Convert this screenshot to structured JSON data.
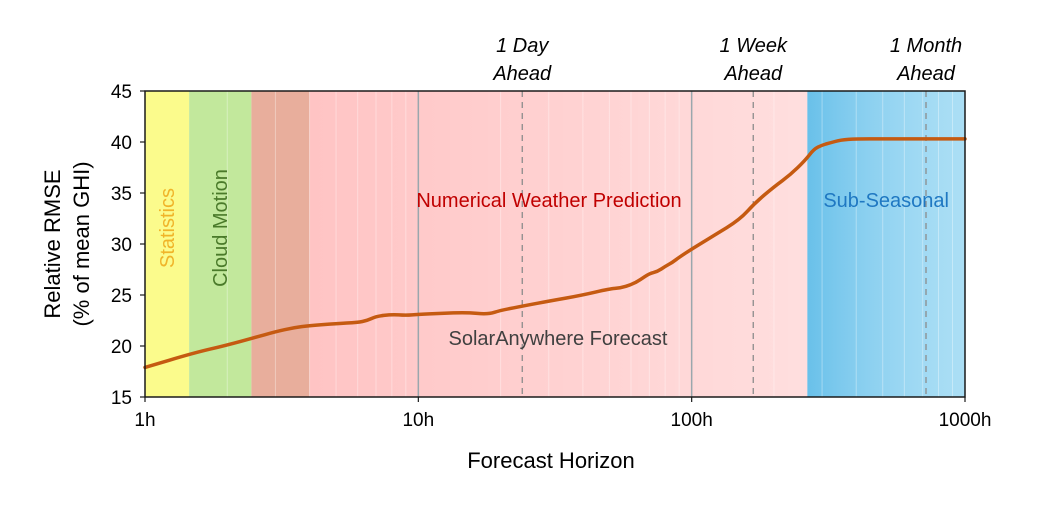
{
  "chart_data": {
    "type": "line",
    "x_scale": "log",
    "xlim": [
      1,
      1000
    ],
    "ylim": [
      15,
      45
    ],
    "xlabel": "Forecast Horizon",
    "ylabel_line1": "Relative RMSE",
    "ylabel_line2": "(% of mean GHI)",
    "x_ticks": [
      {
        "value": 1,
        "label": "1h"
      },
      {
        "value": 10,
        "label": "10h"
      },
      {
        "value": 100,
        "label": "100h"
      },
      {
        "value": 1000,
        "label": "1000h"
      }
    ],
    "y_ticks": [
      15,
      20,
      25,
      30,
      35,
      40,
      45
    ],
    "regions": [
      {
        "label": "Statistics",
        "from": 1,
        "to": 1.45,
        "color": "#fbfb8c",
        "label_color": "#f0b429",
        "orientation": "vertical"
      },
      {
        "label": "Cloud Motion",
        "from": 1.45,
        "to": 2.45,
        "color": "#c2e89c",
        "label_color": "#4a7a2a",
        "orientation": "vertical"
      },
      {
        "label": "",
        "from": 2.45,
        "to": 4,
        "color": "#e8ae9c",
        "label_color": "",
        "orientation": "none"
      },
      {
        "label": "Numerical Weather Prediction",
        "from": 4,
        "to": 265,
        "color": "#ffc4c4",
        "label_color": "#c00000",
        "orientation": "horizontal"
      },
      {
        "label": "Sub-Seasonal",
        "from": 265,
        "to": 1000,
        "color": "#8fd4f2",
        "label_color": "#1f78c2",
        "orientation": "horizontal"
      }
    ],
    "milestones": [
      {
        "value": 24,
        "line1": "1 Day",
        "line2": "Ahead"
      },
      {
        "value": 168,
        "line1": "1 Week",
        "line2": "Ahead"
      },
      {
        "value": 720,
        "line1": "1 Month",
        "line2": "Ahead"
      }
    ],
    "series": [
      {
        "name": "SolarAnywhere Forecast",
        "color": "#c55a11",
        "x": [
          1,
          1.5,
          2,
          2.5,
          3,
          3.5,
          4,
          5,
          6,
          6.5,
          7,
          8,
          9,
          10,
          12,
          15,
          18,
          20,
          25,
          30,
          40,
          50,
          55,
          60,
          65,
          70,
          75,
          80,
          85,
          90,
          100,
          120,
          150,
          170,
          200,
          230,
          260,
          280,
          300,
          320,
          350,
          400,
          500,
          600,
          700,
          800,
          1000
        ],
        "y": [
          17.9,
          19.3,
          20.1,
          20.8,
          21.4,
          21.8,
          22.0,
          22.2,
          22.3,
          22.5,
          22.9,
          23.1,
          23.0,
          23.1,
          23.2,
          23.3,
          23.1,
          23.5,
          24.0,
          24.4,
          25.0,
          25.6,
          25.7,
          26.0,
          26.5,
          27.1,
          27.3,
          27.8,
          28.2,
          28.7,
          29.5,
          30.8,
          32.4,
          34.0,
          35.6,
          36.8,
          38.2,
          39.3,
          39.7,
          39.9,
          40.2,
          40.3,
          40.3,
          40.3,
          40.3,
          40.3,
          40.3
        ]
      }
    ]
  }
}
